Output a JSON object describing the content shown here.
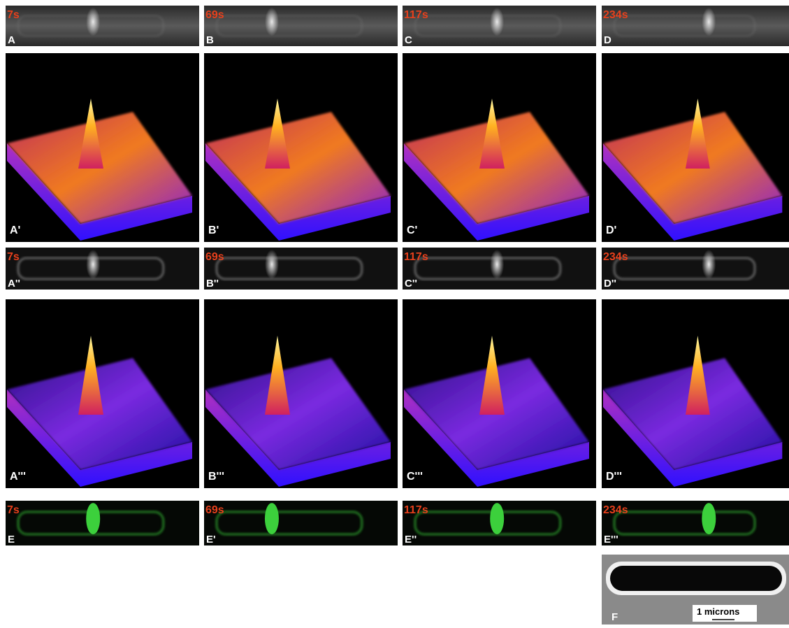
{
  "rows": [
    {
      "kind": "gray",
      "panels": [
        {
          "time": "7s",
          "label": "A"
        },
        {
          "time": "69s",
          "label": "B"
        },
        {
          "time": "117s",
          "label": "C"
        },
        {
          "time": "234s",
          "label": "D"
        }
      ]
    },
    {
      "kind": "surface",
      "panels": [
        {
          "label": "A'"
        },
        {
          "label": "B'"
        },
        {
          "label": "C'"
        },
        {
          "label": "D'"
        }
      ]
    },
    {
      "kind": "gray",
      "panels": [
        {
          "time": "7s",
          "label": "A''"
        },
        {
          "time": "69s",
          "label": "B''"
        },
        {
          "time": "117s",
          "label": "C''"
        },
        {
          "time": "234s",
          "label": "D''"
        }
      ]
    },
    {
      "kind": "surface",
      "panels": [
        {
          "label": "A'''"
        },
        {
          "label": "B'''"
        },
        {
          "label": "C'''"
        },
        {
          "label": "D'''"
        }
      ]
    },
    {
      "kind": "green",
      "panels": [
        {
          "time": "7s",
          "label": "E"
        },
        {
          "time": "69s",
          "label": "E'"
        },
        {
          "time": "117s",
          "label": "E''"
        },
        {
          "time": "234s",
          "label": "E'''"
        }
      ]
    }
  ],
  "f_panel": {
    "label": "F",
    "scale_bar": "1 microns"
  }
}
